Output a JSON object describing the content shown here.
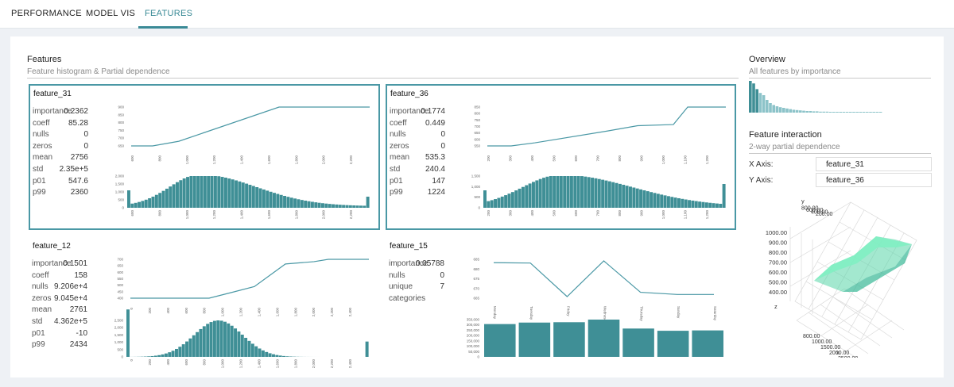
{
  "nav": {
    "tabs": [
      "PERFORMANCE",
      "MODEL VIS",
      "FEATURES"
    ],
    "active": 2
  },
  "features": {
    "title": "Features",
    "subtitle": "Feature histogram & Partial dependence"
  },
  "overview": {
    "title": "Overview",
    "subtitle": "All features by importance",
    "bars": [
      1.0,
      0.92,
      0.74,
      0.62,
      0.55,
      0.4,
      0.3,
      0.24,
      0.2,
      0.17,
      0.15,
      0.13,
      0.11,
      0.09,
      0.08,
      0.07,
      0.06,
      0.05,
      0.05,
      0.04,
      0.04,
      0.03,
      0.03,
      0.03,
      0.02,
      0.02,
      0.02,
      0.02,
      0.01,
      0.01,
      0.01,
      0.01,
      0.01,
      0.01,
      0.01,
      0.01,
      0.01,
      0.01,
      0.01,
      0.01
    ]
  },
  "interaction": {
    "title": "Feature interaction",
    "subtitle": "2-way partial dependence",
    "x_label": "X Axis:",
    "x_value": "feature_31",
    "y_label": "Y Axis:",
    "y_value": "feature_36",
    "z_ticks": [
      "1000.00",
      "900.00",
      "800.00",
      "700.00",
      "600.00",
      "500.00",
      "400.00"
    ],
    "y_ticks": [
      "200.00",
      "400.00",
      "600.00",
      "800.00"
    ],
    "x_ticks": [
      "800.00",
      "1000.00",
      "1500.00",
      "2000.00",
      "2500.00"
    ],
    "axis_y": "y",
    "axis_z": "z",
    "axis_x": "x"
  },
  "cards": [
    {
      "name": "feature_31",
      "selected": true,
      "kind": "numeric",
      "stats": [
        [
          "importance",
          "0.2362"
        ],
        [
          "coeff",
          "85.28"
        ],
        [
          "nulls",
          "0"
        ],
        [
          "zeros",
          "0"
        ],
        [
          "mean",
          "2756"
        ],
        [
          "std",
          "2.35e+5"
        ],
        [
          "p01",
          "547.6"
        ],
        [
          "p99",
          "2360"
        ]
      ],
      "pd_y_ticks": [
        "900",
        "850",
        "800",
        "750",
        "700",
        "650"
      ],
      "pd_points": [
        [
          0,
          0.0
        ],
        [
          0.09,
          0.0
        ],
        [
          0.2,
          0.12
        ],
        [
          0.62,
          1.0
        ],
        [
          1,
          1.0
        ]
      ],
      "x_ticks": [
        "600",
        "800",
        "1,000",
        "1,200",
        "1,400",
        "1,600",
        "1,800",
        "2,000",
        "2,200"
      ],
      "hist_y_ticks": [
        "2,000",
        "1,500",
        "1,000",
        "500",
        "0"
      ],
      "hist": {
        "shape": "skew",
        "peak": 0.3,
        "spread": 0.22,
        "tail": 0.05,
        "first": 0.55,
        "last": 0.35
      }
    },
    {
      "name": "feature_36",
      "selected": true,
      "kind": "numeric",
      "stats": [
        [
          "importance",
          "0.1774"
        ],
        [
          "coeff",
          "0.449"
        ],
        [
          "nulls",
          "0"
        ],
        [
          "zeros",
          "0"
        ],
        [
          "mean",
          "535.3"
        ],
        [
          "std",
          "240.4"
        ],
        [
          "p01",
          "147"
        ],
        [
          "p99",
          "1224"
        ]
      ],
      "pd_y_ticks": [
        "850",
        "800",
        "750",
        "700",
        "650",
        "600",
        "550"
      ],
      "pd_points": [
        [
          0,
          0.0
        ],
        [
          0.1,
          0.0
        ],
        [
          0.2,
          0.08
        ],
        [
          0.5,
          0.38
        ],
        [
          0.63,
          0.52
        ],
        [
          0.78,
          0.55
        ],
        [
          0.84,
          1.0
        ],
        [
          1,
          1.0
        ]
      ],
      "x_ticks": [
        "200",
        "300",
        "400",
        "500",
        "600",
        "700",
        "800",
        "900",
        "1,000",
        "1,100",
        "1,200"
      ],
      "hist_y_ticks": [
        "1,500",
        "1,000",
        "500",
        "0"
      ],
      "hist": {
        "shape": "skew",
        "peak": 0.32,
        "spread": 0.28,
        "tail": 0.04,
        "first": 0.55,
        "last": 0.75
      }
    },
    {
      "name": "feature_12",
      "selected": false,
      "kind": "numeric",
      "stats": [
        [
          "importance",
          "0.1501"
        ],
        [
          "coeff",
          "158"
        ],
        [
          "nulls",
          "9.206e+4"
        ],
        [
          "zeros",
          "9.045e+4"
        ],
        [
          "mean",
          "2761"
        ],
        [
          "std",
          "4.362e+5"
        ],
        [
          "p01",
          "-10"
        ],
        [
          "p99",
          "2434"
        ]
      ],
      "pd_y_ticks": [
        "700",
        "650",
        "600",
        "550",
        "500",
        "450",
        "400"
      ],
      "pd_points": [
        [
          0,
          0.0
        ],
        [
          0.33,
          0.0
        ],
        [
          0.42,
          0.14
        ],
        [
          0.52,
          0.3
        ],
        [
          0.65,
          0.88
        ],
        [
          0.77,
          0.94
        ],
        [
          0.83,
          1.0
        ],
        [
          1,
          1.0
        ]
      ],
      "x_ticks": [
        "0",
        "200",
        "400",
        "600",
        "800",
        "1,000",
        "1,200",
        "1,400",
        "1,600",
        "1,800",
        "2,000",
        "2,200",
        "2,400"
      ],
      "hist_y_ticks": [
        "2,500",
        "2,000",
        "1,500",
        "1,000",
        "500",
        "0"
      ],
      "hist": {
        "shape": "bell",
        "peak": 0.38,
        "spread": 0.14,
        "tail": 0.0,
        "first": 1.3,
        "last": 0.42
      }
    },
    {
      "name": "feature_15",
      "selected": false,
      "kind": "categorical",
      "stats": [
        [
          "importance",
          "0.05788"
        ],
        [
          "nulls",
          "0"
        ],
        [
          "unique",
          "7"
        ],
        [
          "categories",
          ""
        ]
      ],
      "pd_y_ticks": [
        "685",
        "680",
        "675",
        "670",
        "665"
      ],
      "categories": [
        "Monday",
        "Tuesday",
        "Friday",
        "Wednesday",
        "Thursday",
        "Sunday",
        "Saturday"
      ],
      "pd_values": [
        0.95,
        0.94,
        0.0,
        1.0,
        0.12,
        0.06,
        0.06
      ],
      "bar_y_ticks": [
        "350,000",
        "300,000",
        "250,000",
        "200,000",
        "150,000",
        "100,000",
        "50,000",
        "0"
      ],
      "bar_values": [
        0.88,
        0.92,
        0.93,
        1.0,
        0.76,
        0.7,
        0.71
      ]
    }
  ]
}
